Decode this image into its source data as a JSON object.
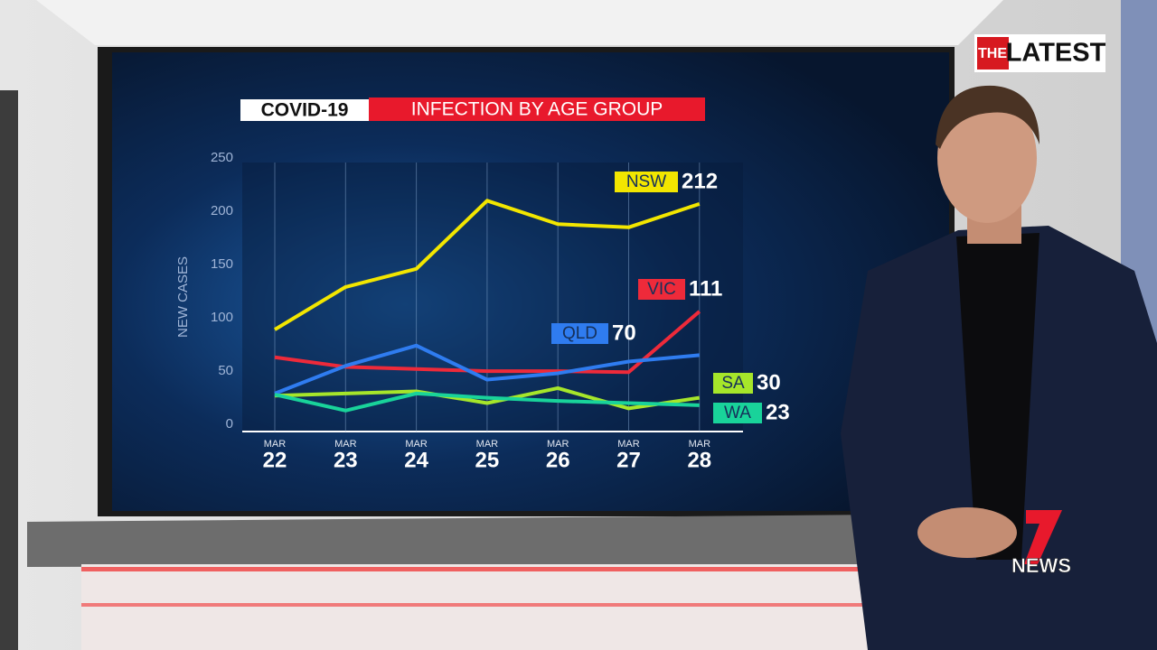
{
  "chart_data": {
    "type": "line",
    "title": "COVID-19",
    "subtitle": "INFECTION BY AGE GROUP",
    "y_label": "NEW CASES",
    "x_month_label": "MAR",
    "categories": [
      "22",
      "23",
      "24",
      "25",
      "26",
      "27",
      "28"
    ],
    "ylim": [
      0,
      250
    ],
    "yticks": [
      0,
      50,
      100,
      150,
      200,
      250
    ],
    "grid": true,
    "series": [
      {
        "name": "NSW",
        "color": "#f2e600",
        "values": [
          94,
          134,
          151,
          215,
          193,
          190,
          212
        ]
      },
      {
        "name": "VIC",
        "color": "#ee2a3a",
        "values": [
          68,
          59,
          57,
          55,
          55,
          54,
          111
        ]
      },
      {
        "name": "QLD",
        "color": "#2f7cf0",
        "values": [
          34,
          60,
          79,
          47,
          53,
          64,
          70
        ]
      },
      {
        "name": "SA",
        "color": "#a6e62a",
        "values": [
          32,
          34,
          36,
          25,
          39,
          20,
          30
        ]
      },
      {
        "name": "WA",
        "color": "#19d39a",
        "values": [
          33,
          18,
          34,
          30,
          27,
          25,
          23
        ]
      }
    ]
  },
  "branding": {
    "show_prefix": "THE",
    "show_name": "LATEST",
    "network_name": "NEWS"
  }
}
